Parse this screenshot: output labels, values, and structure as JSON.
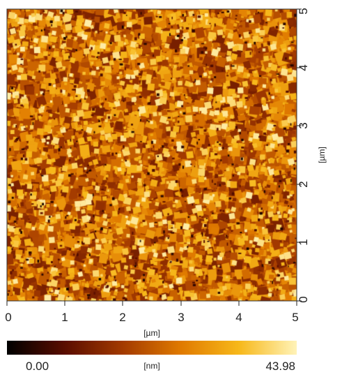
{
  "image": {
    "description_type": "afm-topography-map",
    "x_axis": {
      "label": "[µm]",
      "ticks": [
        "0",
        "1",
        "2",
        "3",
        "4",
        "5"
      ],
      "min": 0,
      "max": 5
    },
    "y_axis": {
      "label": "[µm]",
      "ticks": [
        "0",
        "1",
        "2",
        "3",
        "4",
        "5"
      ],
      "min": 0,
      "max": 5
    },
    "colorbar": {
      "min_label": "0.00",
      "max_label": "43.98",
      "unit_label": "[nm]",
      "min": 0.0,
      "max": 43.98,
      "colors": [
        "#000000",
        "#5a0d00",
        "#a33a00",
        "#e07a00",
        "#f7b81a",
        "#fff3b8"
      ]
    }
  }
}
